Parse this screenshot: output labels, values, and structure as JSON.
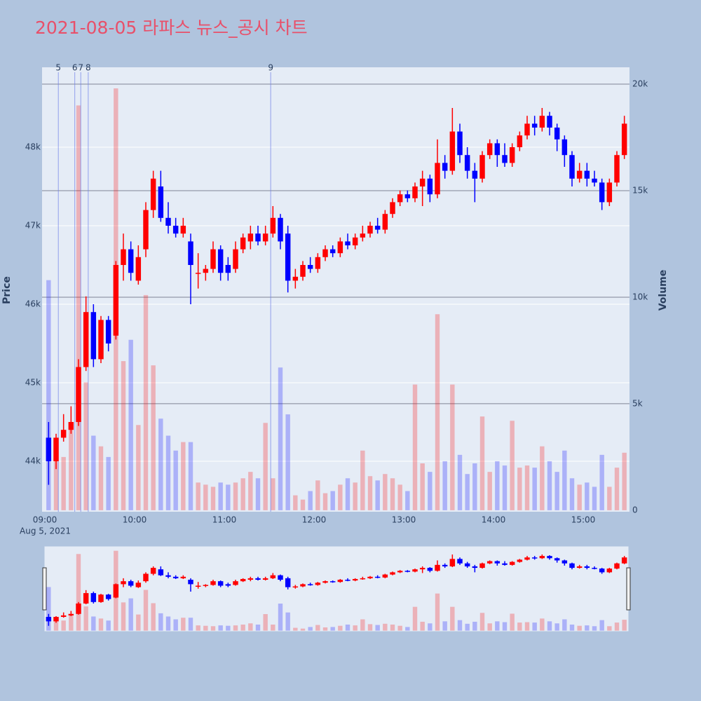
{
  "chart_data": {
    "type": "candlestick",
    "title": "2021-08-05 라파스 뉴스_공시 차트",
    "y_title": "Price",
    "y2_title": "Volume",
    "date_label": "Aug 5, 2021",
    "increasing_color": "#ff0000",
    "decreasing_color": "#0000ff",
    "x": [
      "09:00",
      "09:05",
      "09:10",
      "09:15",
      "09:20",
      "09:25",
      "09:30",
      "09:35",
      "09:40",
      "09:45",
      "09:50",
      "09:55",
      "10:00",
      "10:05",
      "10:10",
      "10:15",
      "10:20",
      "10:25",
      "10:30",
      "10:35",
      "10:40",
      "10:45",
      "10:50",
      "10:55",
      "11:00",
      "11:05",
      "11:10",
      "11:15",
      "11:20",
      "11:25",
      "11:30",
      "11:35",
      "11:40",
      "11:45",
      "11:50",
      "11:55",
      "12:00",
      "12:05",
      "12:10",
      "12:15",
      "12:20",
      "12:25",
      "12:30",
      "12:35",
      "12:40",
      "12:45",
      "12:50",
      "12:55",
      "13:00",
      "13:05",
      "13:10",
      "13:15",
      "13:20",
      "13:25",
      "13:30",
      "13:35",
      "13:40",
      "13:45",
      "13:50",
      "13:55",
      "14:00",
      "14:05",
      "14:10",
      "14:15",
      "14:20",
      "14:25",
      "14:30",
      "14:35",
      "14:40",
      "14:45",
      "14:50",
      "14:55",
      "15:00",
      "15:05",
      "15:10",
      "15:15",
      "15:20",
      "15:25"
    ],
    "open": [
      44300,
      44000,
      44300,
      44400,
      44500,
      45200,
      45900,
      45300,
      45800,
      45600,
      46500,
      46700,
      46300,
      46700,
      47200,
      47500,
      47100,
      47000,
      46900,
      46800,
      46400,
      46400,
      46450,
      46700,
      46500,
      46450,
      46700,
      46800,
      46900,
      46800,
      46900,
      47100,
      46900,
      46300,
      46350,
      46500,
      46450,
      46600,
      46700,
      46650,
      46800,
      46750,
      46850,
      46900,
      47000,
      46950,
      47150,
      47300,
      47400,
      47350,
      47500,
      47600,
      47400,
      47800,
      47700,
      48200,
      47900,
      47700,
      47600,
      47900,
      48050,
      47900,
      47800,
      48000,
      48150,
      48300,
      48250,
      48400,
      48250,
      48100,
      47900,
      47600,
      47700,
      47600,
      47550,
      47300,
      47550,
      47900
    ],
    "high": [
      44500,
      44350,
      44600,
      44700,
      45300,
      46100,
      46000,
      45850,
      45850,
      46550,
      46900,
      46800,
      46750,
      47300,
      47700,
      47700,
      47300,
      47100,
      47100,
      46900,
      46650,
      46500,
      46800,
      46750,
      46600,
      46800,
      46900,
      47000,
      47000,
      47000,
      47250,
      47150,
      47000,
      46450,
      46550,
      46600,
      46650,
      46750,
      46750,
      46850,
      46900,
      46900,
      47000,
      47050,
      47100,
      47200,
      47350,
      47450,
      47450,
      47550,
      47700,
      47650,
      48100,
      47900,
      48500,
      48300,
      48000,
      47800,
      47950,
      48100,
      48100,
      48050,
      48050,
      48200,
      48400,
      48400,
      48500,
      48450,
      48300,
      48150,
      47950,
      47800,
      47800,
      47700,
      47600,
      47600,
      47950,
      48400
    ],
    "low": [
      43700,
      43900,
      44250,
      44350,
      44450,
      45150,
      45200,
      45250,
      45400,
      45550,
      46300,
      46300,
      46250,
      46600,
      47100,
      47050,
      46900,
      46850,
      46850,
      46000,
      46200,
      46300,
      46400,
      46300,
      46300,
      46400,
      46650,
      46700,
      46750,
      46750,
      46850,
      46700,
      46150,
      46200,
      46300,
      46400,
      46400,
      46550,
      46600,
      46600,
      46700,
      46700,
      46800,
      46850,
      46900,
      46900,
      47100,
      47250,
      47300,
      47300,
      47250,
      47300,
      47350,
      47600,
      47650,
      47800,
      47600,
      47300,
      47550,
      47850,
      47750,
      47750,
      47750,
      47950,
      48100,
      48150,
      48200,
      48150,
      47950,
      47750,
      47500,
      47550,
      47500,
      47500,
      47200,
      47250,
      47500,
      47850
    ],
    "close": [
      44000,
      44300,
      44400,
      44500,
      45200,
      45900,
      45300,
      45800,
      45500,
      46500,
      46700,
      46400,
      46600,
      47200,
      47600,
      47100,
      47000,
      46900,
      47000,
      46500,
      46400,
      46450,
      46700,
      46400,
      46400,
      46700,
      46850,
      46900,
      46800,
      46900,
      47100,
      46800,
      46300,
      46350,
      46500,
      46450,
      46600,
      46700,
      46650,
      46800,
      46750,
      46850,
      46900,
      47000,
      46950,
      47150,
      47300,
      47400,
      47350,
      47500,
      47600,
      47400,
      47800,
      47700,
      48200,
      47900,
      47700,
      47600,
      47900,
      48050,
      47900,
      47800,
      48000,
      48150,
      48300,
      48250,
      48400,
      48250,
      48100,
      47900,
      47600,
      47700,
      47600,
      47550,
      47300,
      47550,
      47900,
      48300
    ],
    "volume": [
      10800,
      3000,
      2500,
      4000,
      19000,
      6000,
      3500,
      3000,
      2500,
      19800,
      7000,
      8000,
      4000,
      10100,
      6800,
      4300,
      3500,
      2800,
      3200,
      3200,
      1300,
      1200,
      1100,
      1300,
      1200,
      1300,
      1500,
      1800,
      1500,
      4100,
      1500,
      6700,
      4500,
      700,
      500,
      900,
      1400,
      800,
      900,
      1200,
      1500,
      1300,
      2800,
      1600,
      1400,
      1700,
      1500,
      1200,
      900,
      5900,
      2200,
      1800,
      9200,
      2300,
      5900,
      2600,
      1700,
      2200,
      4400,
      1800,
      2300,
      2100,
      4200,
      2000,
      2100,
      2000,
      3000,
      2300,
      1800,
      2800,
      1500,
      1200,
      1300,
      1100,
      2600,
      1100,
      2000,
      2700
    ],
    "annotations": [
      {
        "x": "09:09",
        "text": "5"
      },
      {
        "x": "09:20",
        "text": "6"
      },
      {
        "x": "09:24",
        "text": "7"
      },
      {
        "x": "09:29",
        "text": "8"
      },
      {
        "x": "11:31",
        "text": "9"
      }
    ],
    "xlim": [
      "09:00",
      "15:30"
    ],
    "xticks": [
      "09:00",
      "10:00",
      "11:00",
      "12:00",
      "13:00",
      "14:00",
      "15:00"
    ],
    "ylim": [
      43357,
      49018
    ],
    "yticks": [
      {
        "value": 44000,
        "label": "44k"
      },
      {
        "value": 45000,
        "label": "45k"
      },
      {
        "value": 46000,
        "label": "46k"
      },
      {
        "value": 47000,
        "label": "47k"
      },
      {
        "value": 48000,
        "label": "48k"
      }
    ],
    "y2lim": [
      -70,
      20790
    ],
    "y2ticks": [
      0,
      {
        "value": 5000,
        "label": "5k"
      },
      {
        "value": 10000,
        "label": "10k"
      },
      {
        "value": 15000,
        "label": "15k"
      },
      {
        "value": 20000,
        "label": "20k"
      }
    ],
    "grid": true
  }
}
